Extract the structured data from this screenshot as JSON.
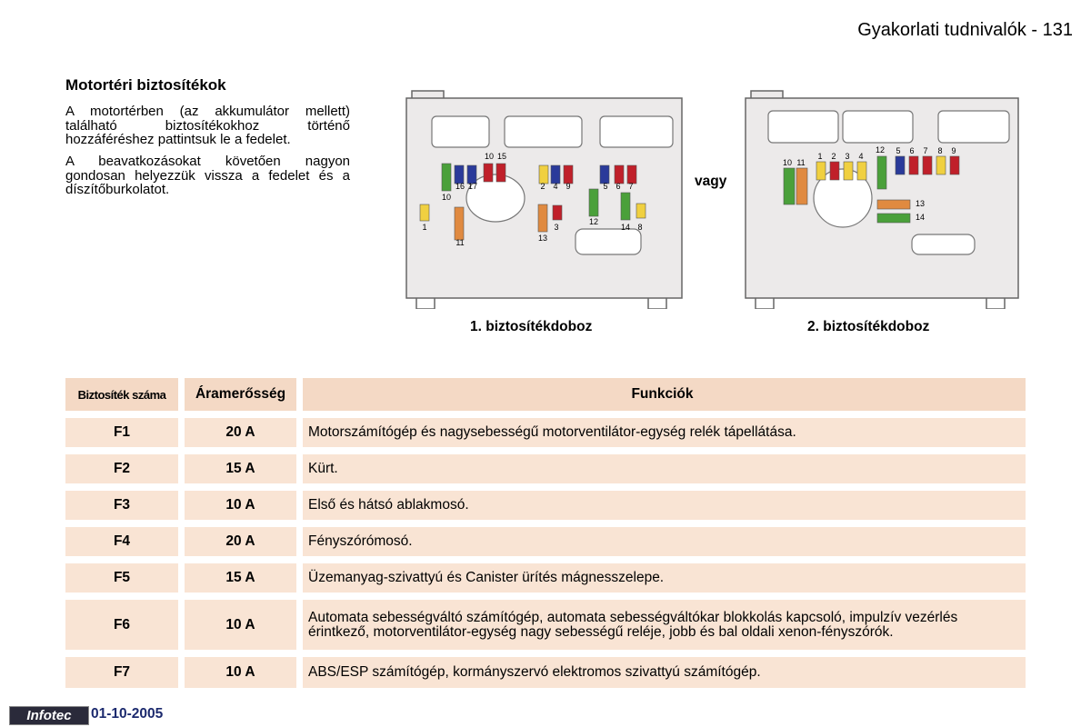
{
  "header": {
    "title": "Gyakorlati tudnivalók - 131"
  },
  "section": {
    "heading": "Motortéri biztosítékok",
    "paragraphs": [
      "A motortérben (az akkumulátor mellett) található biztosítékokhoz történő hozzáféréshez pattintsuk le a fedelet.",
      "A beavatkozásokat követően nagyon gondosan helyezzük vissza a fedelet és a díszítőburkolatot."
    ]
  },
  "diagrams": [
    {
      "caption": "1. biztosítékdoboz",
      "labels": [
        "10",
        "15",
        "16",
        "17",
        "2",
        "4",
        "9",
        "5",
        "6",
        "7",
        "10",
        "1",
        "11",
        "3",
        "13",
        "12",
        "14",
        "8"
      ]
    },
    {
      "caption": "2. biztosítékdoboz",
      "labels": [
        "10",
        "11",
        "1",
        "2",
        "3",
        "4",
        "12",
        "5",
        "6",
        "7",
        "8",
        "9",
        "13",
        "14"
      ]
    }
  ],
  "separator": "vagy",
  "table": {
    "headers": [
      "Biztosíték száma",
      "Áramerősség",
      "Funkciók"
    ],
    "rows": [
      [
        "F1",
        "20 A",
        "Motorszámítógép és nagysebességű motorventilátor-egység relék tápellátása."
      ],
      [
        "F2",
        "15 A",
        "Kürt."
      ],
      [
        "F3",
        "10 A",
        "Első és hátsó ablakmosó."
      ],
      [
        "F4",
        "20 A",
        "Fényszórómosó."
      ],
      [
        "F5",
        "15 A",
        "Üzemanyag-szivattyú és Canister ürítés mágnesszelepe."
      ],
      [
        "F6",
        "10 A",
        "Automata sebességváltó számítógép, automata sebességváltókar blokkolás kapcsoló, impulzív vezérlés érintkező, motorventilátor-egység nagy sebességű reléje, jobb és bal oldali xenon-fényszórók."
      ],
      [
        "F7",
        "10 A",
        "ABS/ESP számítógép, kormányszervó elektromos szivattyú számítógép."
      ]
    ]
  },
  "footer": {
    "brand": "Infotec",
    "date": "01-10-2005"
  }
}
